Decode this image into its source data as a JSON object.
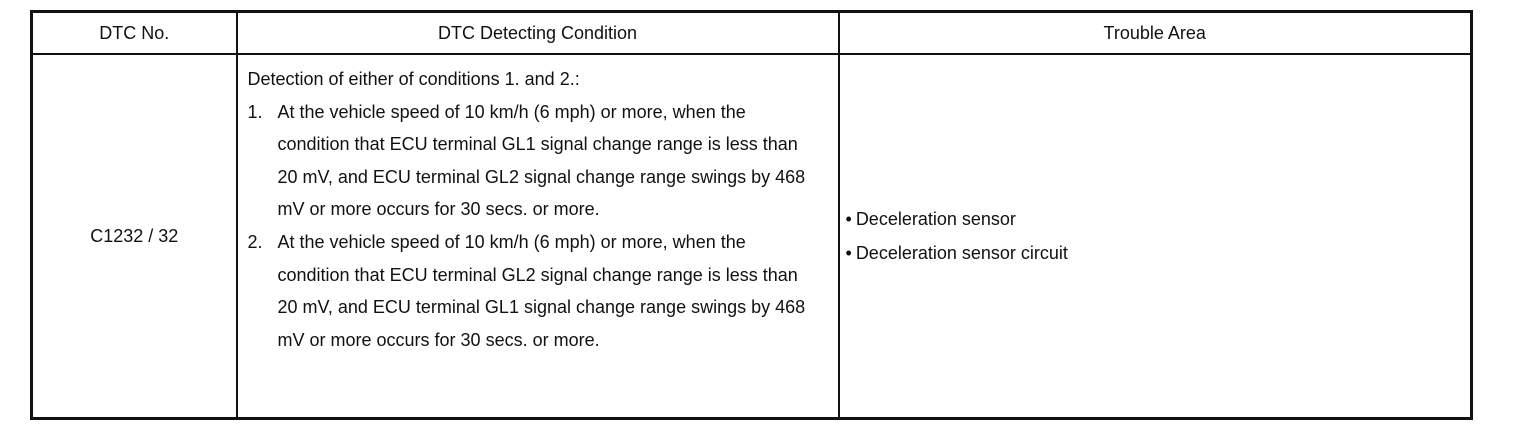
{
  "table": {
    "header": [
      "DTC No.",
      "DTC Detecting Condition",
      "Trouble Area"
    ],
    "rows": [
      {
        "dtc": "C1232 / 32",
        "condition": {
          "intro": "Detection of either of conditions 1. and 2.:",
          "items": [
            {
              "marker": "1.",
              "text": "At the vehicle speed of 10 km/h (6 mph) or more, when the condition that ECU terminal GL1 signal change range is less than 20 mV, and ECU terminal GL2 signal change range swings by 468 mV or more occurs for 30 secs. or more."
            },
            {
              "marker": "2.",
              "text": "At the vehicle speed of 10 km/h (6 mph) or more, when the condition that ECU terminal GL2 signal change range is less than 20 mV, and ECU terminal GL1 signal change range swings by 468 mV or more occurs for 30 secs. or more."
            }
          ]
        },
        "trouble_area": [
          "Deceleration sensor",
          "Deceleration sensor circuit"
        ]
      }
    ]
  }
}
